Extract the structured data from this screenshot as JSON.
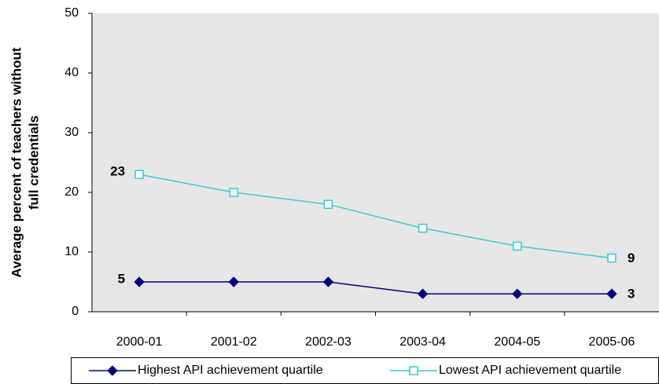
{
  "chart_data": {
    "type": "line",
    "y_label": [
      "Average percent of teachers without",
      "full credentials"
    ],
    "categories": [
      "2000-01",
      "2001-02",
      "2002-03",
      "2003-04",
      "2004-05",
      "2005-06"
    ],
    "series": [
      {
        "name": "Highest API achievement quartile",
        "color": "#000080",
        "marker": "diamond",
        "values": [
          5,
          5,
          5,
          3,
          3,
          3
        ]
      },
      {
        "name": "Lowest API achievement quartile",
        "color": "#33cccc",
        "marker": "square",
        "values": [
          23,
          20,
          18,
          14,
          11,
          9
        ]
      }
    ],
    "ylim": [
      0,
      50
    ],
    "yticks": [
      0,
      10,
      20,
      30,
      40,
      50
    ],
    "grid": false,
    "legend": "bottom"
  }
}
